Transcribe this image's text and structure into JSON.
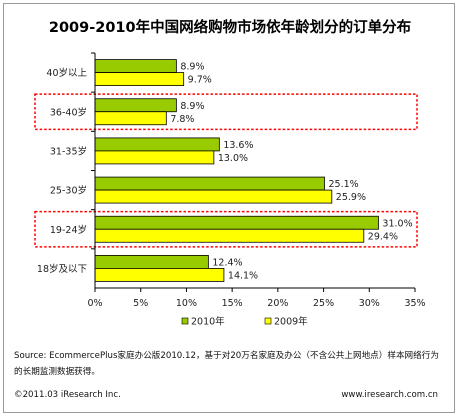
{
  "chart_data": {
    "type": "bar",
    "orientation": "horizontal",
    "title": "2009-2010年中国网络购物市场依年龄划分的订单分布",
    "categories": [
      "40岁以上",
      "36-40岁",
      "31-35岁",
      "25-30岁",
      "19-24岁",
      "18岁及以下"
    ],
    "series": [
      {
        "name": "2010年",
        "color": "#99cc00",
        "values": [
          8.9,
          8.9,
          13.6,
          25.1,
          31.0,
          12.4
        ],
        "labels": [
          "8.9%",
          "8.9%",
          "13.6%",
          "25.1%",
          "31.0%",
          "12.4%"
        ]
      },
      {
        "name": "2009年",
        "color": "#ffff00",
        "values": [
          9.7,
          7.8,
          13.0,
          25.9,
          29.4,
          14.1
        ],
        "labels": [
          "9.7%",
          "7.8%",
          "13.0%",
          "25.9%",
          "29.4%",
          "14.1%"
        ]
      }
    ],
    "xlim": [
      0,
      35
    ],
    "xticks": [
      "0%",
      "5%",
      "10%",
      "15%",
      "20%",
      "25%",
      "30%",
      "35%"
    ],
    "legend_position": "bottom",
    "highlighted_categories": [
      "36-40岁",
      "19-24岁"
    ],
    "highlight_color": "#ff0000"
  },
  "footer": {
    "source": "Source: EcommercePlus家庭办公版2010.12，基于对20万名家庭及办公（不含公共上网地点）样本网络行为的长期监测数据获得。",
    "copyright": "©2011.03 iResearch Inc.",
    "website": "www.iresearch.com.cn"
  }
}
